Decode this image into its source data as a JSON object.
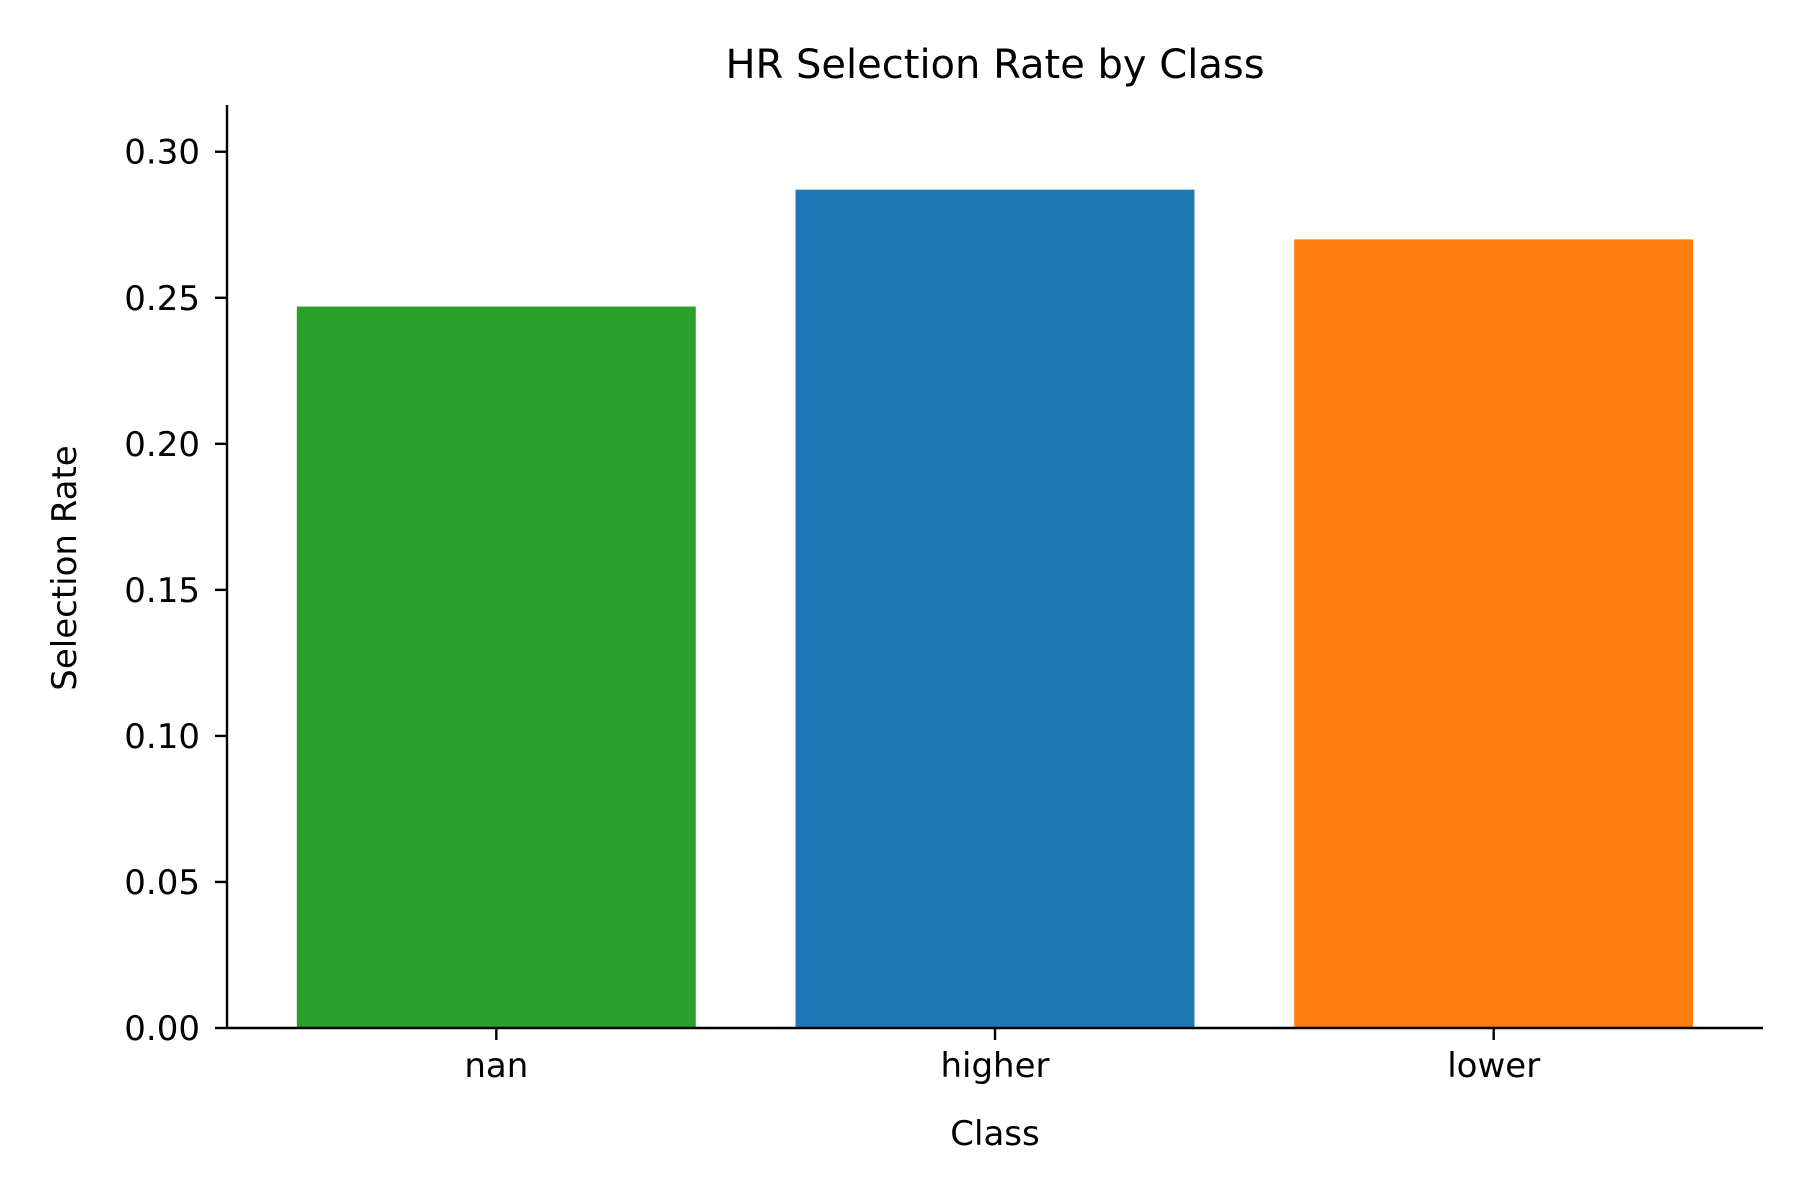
{
  "chart_data": {
    "type": "bar",
    "title": "HR Selection Rate by Class",
    "xlabel": "Class",
    "ylabel": "Selection Rate",
    "categories": [
      "nan",
      "higher",
      "lower"
    ],
    "values": [
      0.247,
      0.287,
      0.27
    ],
    "colors": [
      "#2ca02c",
      "#1f77b4",
      "#ff7f0e"
    ],
    "ylim": [
      0,
      0.316
    ],
    "yticks": [
      0.0,
      0.05,
      0.1,
      0.15,
      0.2,
      0.25,
      0.3
    ],
    "ytick_labels": [
      "0.00",
      "0.05",
      "0.10",
      "0.15",
      "0.20",
      "0.25",
      "0.30"
    ],
    "grid": false,
    "legend": "none"
  }
}
